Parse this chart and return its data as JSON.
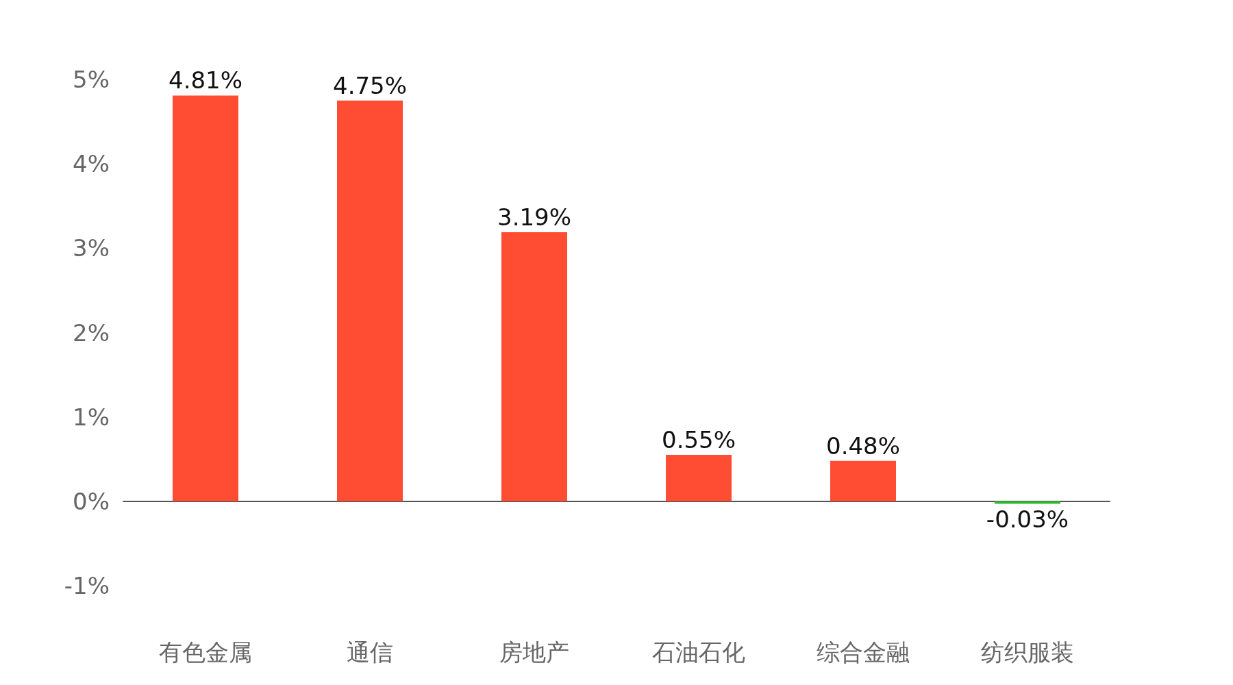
{
  "chart_data": {
    "type": "bar",
    "categories": [
      "有色金属",
      "通信",
      "房地产",
      "石油石化",
      "综合金融",
      "纺织服装"
    ],
    "values": [
      4.81,
      4.75,
      3.19,
      0.55,
      0.48,
      -0.03
    ],
    "value_labels": [
      "4.81%",
      "4.75%",
      "3.19%",
      "0.55%",
      "0.48%",
      "-0.03%"
    ],
    "colors": [
      "#ff4d33",
      "#ff4d33",
      "#ff4d33",
      "#ff4d33",
      "#ff4d33",
      "#33bb33"
    ],
    "ylim": [
      -1,
      5
    ],
    "yticks": [
      {
        "value": -1,
        "label": "-1%"
      },
      {
        "value": 0,
        "label": "0%"
      },
      {
        "value": 1,
        "label": "1%"
      },
      {
        "value": 2,
        "label": "2%"
      },
      {
        "value": 3,
        "label": "3%"
      },
      {
        "value": 4,
        "label": "4%"
      },
      {
        "value": 5,
        "label": "5%"
      }
    ]
  }
}
